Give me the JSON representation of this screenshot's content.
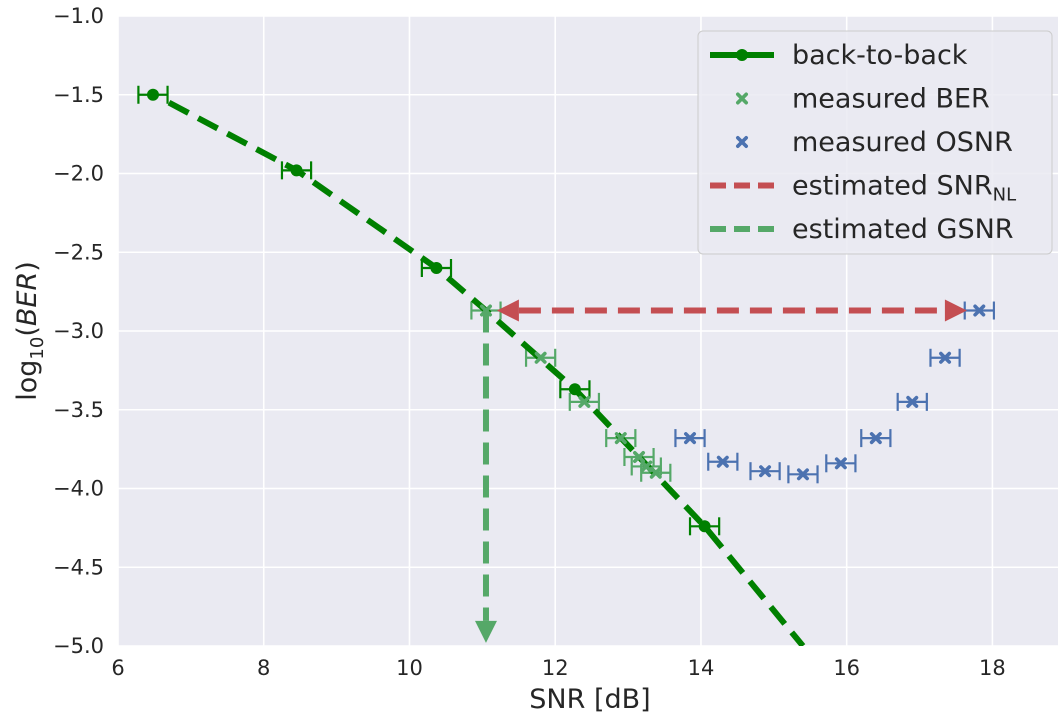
{
  "chart_data": {
    "type": "scatter",
    "xlabel": "SNR [dB]",
    "ylabel": {
      "base": "log",
      "sub": "10",
      "open": "(",
      "italic": "BER",
      "close": ")"
    },
    "xlim": [
      6,
      18.9
    ],
    "ylim": [
      -5.0,
      -1.0
    ],
    "x_ticks": [
      6,
      8,
      10,
      12,
      14,
      16,
      18
    ],
    "y_ticks": [
      -1.0,
      -1.5,
      -2.0,
      -2.5,
      -3.0,
      -3.5,
      -4.0,
      -4.5,
      -5.0
    ],
    "x_tick_labels": [
      "6",
      "8",
      "10",
      "12",
      "14",
      "16",
      "18"
    ],
    "y_tick_labels": [
      "−1.0",
      "−1.5",
      "−2.0",
      "−2.5",
      "−3.0",
      "−3.5",
      "−4.0",
      "−4.5",
      "−5.0"
    ],
    "grid": true,
    "legend_position": "top-right",
    "legend": [
      {
        "label": "back-to-back",
        "sub": "",
        "kind": "line-marker",
        "color": "#008000",
        "dashed": false
      },
      {
        "label": "measured BER",
        "sub": "",
        "kind": "x-marker",
        "color": "#55a868",
        "dashed": false
      },
      {
        "label": "measured OSNR",
        "sub": "",
        "kind": "x-marker",
        "color": "#4c72b0",
        "dashed": false
      },
      {
        "label": "estimated SNR",
        "sub": "NL",
        "kind": "line",
        "color": "#c44e52",
        "dashed": true
      },
      {
        "label": "estimated GSNR",
        "sub": "",
        "kind": "line",
        "color": "#55a868",
        "dashed": true
      }
    ],
    "series": [
      {
        "name": "back-to-back",
        "color": "#008000",
        "style": "dashed-fit",
        "points": [
          [
            6.48,
            -1.5
          ],
          [
            8.45,
            -1.98
          ],
          [
            10.37,
            -2.6
          ],
          [
            12.27,
            -3.37
          ],
          [
            14.05,
            -4.24
          ]
        ],
        "xerr": 0.2,
        "fit": [
          [
            6.7,
            -1.55
          ],
          [
            8.45,
            -1.98
          ],
          [
            10.37,
            -2.6
          ],
          [
            11.05,
            -2.87
          ],
          [
            12.27,
            -3.37
          ],
          [
            14.05,
            -4.24
          ],
          [
            15.4,
            -5.0
          ]
        ]
      },
      {
        "name": "measured BER",
        "color": "#55a868",
        "points": [
          [
            11.05,
            -2.87
          ],
          [
            11.8,
            -3.17
          ],
          [
            12.4,
            -3.45
          ],
          [
            12.9,
            -3.68
          ],
          [
            13.15,
            -3.8
          ],
          [
            13.25,
            -3.86
          ],
          [
            13.38,
            -3.9
          ]
        ],
        "xerr": 0.2
      },
      {
        "name": "measured OSNR",
        "color": "#4c72b0",
        "points": [
          [
            13.85,
            -3.68
          ],
          [
            14.3,
            -3.83
          ],
          [
            14.88,
            -3.89
          ],
          [
            15.4,
            -3.91
          ],
          [
            15.92,
            -3.84
          ],
          [
            16.4,
            -3.68
          ],
          [
            16.9,
            -3.45
          ],
          [
            17.35,
            -3.17
          ],
          [
            17.82,
            -2.87
          ]
        ],
        "xerr": 0.2
      }
    ],
    "arrows": [
      {
        "name": "estimated SNRNL",
        "color": "#c44e52",
        "from": [
          11.2,
          -2.87
        ],
        "to": [
          17.65,
          -2.87
        ],
        "double": true
      },
      {
        "name": "estimated GSNR",
        "color": "#55a868",
        "from": [
          11.05,
          -2.87
        ],
        "to": [
          11.05,
          -4.98
        ],
        "double": false
      }
    ]
  }
}
